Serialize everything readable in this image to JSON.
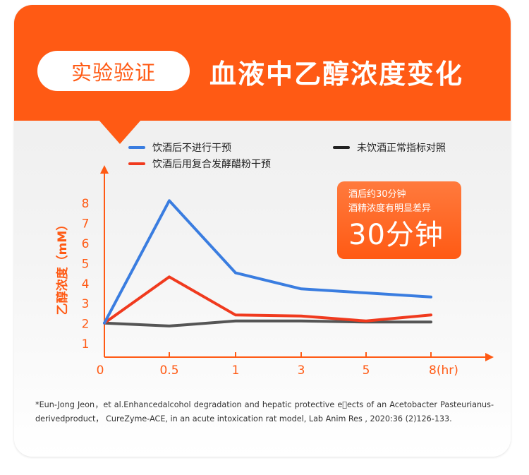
{
  "header": {
    "badge_label": "实验验证",
    "title": "血液中乙醇浓度变化"
  },
  "callout": {
    "line1": "酒后约30分钟",
    "line2": "酒精浓度有明显差异",
    "highlight": "30分钟"
  },
  "footnote": "*Eun-Jong Jeon，et al.Enhancedalcohol degradation and hepatic protective e\u0000ects of an Acetobacter Pasteurianus-derivedproduct， CureZyme-ACE, in an acute intoxication rat model, Lab Anim Res , 2020:36 (2)126-133.",
  "colors": {
    "accent": "#ff5a14",
    "series_blue": "#3a7de0",
    "series_red": "#f03a1e",
    "series_gray": "#6b6b6b"
  },
  "chart_data": {
    "type": "line",
    "ylabel": "乙醇浓度（mM）",
    "categories": [
      "0",
      "0.5",
      "1",
      "3",
      "5",
      "8(hr)"
    ],
    "yticks": [
      "1",
      "2",
      "3",
      "4",
      "5",
      "6",
      "7",
      "8"
    ],
    "ylim": [
      0.3,
      9.2
    ],
    "series": [
      {
        "name": "饮酒后不进行干预",
        "color": "#3a7de0",
        "values": [
          2.0,
          8.1,
          4.5,
          3.7,
          3.5,
          3.3
        ]
      },
      {
        "name": "饮酒后用复合发酵醋粉干预",
        "color": "#f03a1e",
        "values": [
          2.0,
          4.3,
          2.4,
          2.35,
          2.1,
          2.4
        ]
      },
      {
        "name": "未饮酒正常指标对照",
        "color": "#555555",
        "values": [
          2.0,
          1.85,
          2.1,
          2.1,
          2.05,
          2.05
        ]
      }
    ],
    "legend": [
      {
        "label": "饮酒后不进行干预",
        "color": "#3a7de0"
      },
      {
        "label": "饮酒后用复合发酵醋粉干预",
        "color": "#f03a1e"
      },
      {
        "label": "未饮酒正常指标对照",
        "color": "#222222"
      }
    ],
    "grid": false,
    "legend_position": "top"
  }
}
